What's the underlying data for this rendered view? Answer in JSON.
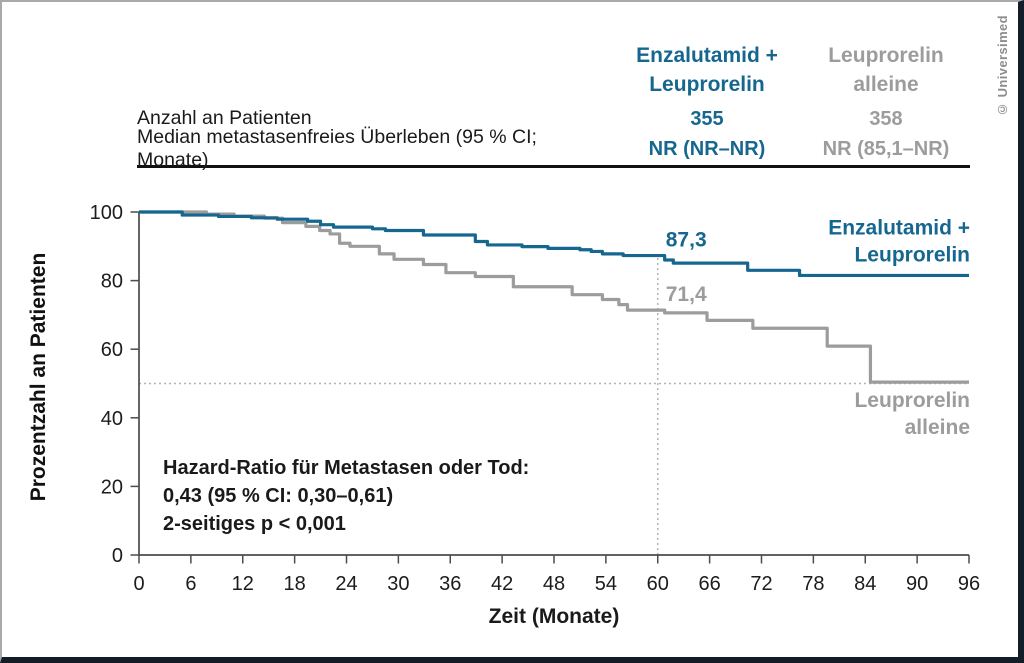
{
  "copyright": "© Universimed",
  "colors": {
    "enzalutamid_blue": "#16678f",
    "leuprorelin_gray": "#9c9c9c",
    "frame_dark": "#121d27",
    "dotted_gray": "#b4b4b4"
  },
  "table": {
    "columns": [
      {
        "header": "Enzalutamid +\nLeuprorelin",
        "color": "#16678f"
      },
      {
        "header": "Leuprorelin alleine",
        "color": "#9c9c9c"
      }
    ],
    "rows": [
      {
        "label": "Anzahl an Patienten",
        "col1": "355",
        "col2": "358"
      },
      {
        "label": "Median metastasenfreies Überleben (95 % CI; Monate)",
        "col1": "NR (NR–NR)",
        "col2": "NR (85,1–NR)"
      }
    ]
  },
  "chart_data": {
    "type": "line",
    "subtype": "kaplan-meier-step",
    "title": "",
    "xlabel": "Zeit (Monate)",
    "ylabel": "Prozentzahl an Patienten",
    "xlim": [
      0,
      96
    ],
    "ylim": [
      0,
      100
    ],
    "x_ticks": [
      0,
      6,
      12,
      18,
      24,
      30,
      36,
      42,
      48,
      54,
      60,
      66,
      72,
      78,
      84,
      90,
      96
    ],
    "y_ticks": [
      0,
      20,
      40,
      60,
      80,
      100
    ],
    "grid": false,
    "reference_lines": {
      "horizontal_y": 50,
      "vertical_x": 60
    },
    "series": [
      {
        "name": "Enzalutamid + Leuprorelin",
        "color": "#16678f",
        "legend_lines": [
          "Enzalutamid +",
          "Leuprorelin"
        ],
        "annotation": {
          "text": "87,3",
          "month": 60,
          "value": 87.3
        },
        "points": [
          [
            0,
            100
          ],
          [
            5,
            99.1
          ],
          [
            9.2,
            98.7
          ],
          [
            13,
            98.3
          ],
          [
            16,
            97.9
          ],
          [
            19.5,
            97.3
          ],
          [
            21,
            96.3
          ],
          [
            22.5,
            95.6
          ],
          [
            27,
            95.1
          ],
          [
            28.5,
            94.6
          ],
          [
            32.9,
            93.3
          ],
          [
            38.9,
            91.4
          ],
          [
            40.3,
            90.4
          ],
          [
            44.3,
            89.9
          ],
          [
            47.3,
            89.4
          ],
          [
            51,
            89
          ],
          [
            52.3,
            88.5
          ],
          [
            53.6,
            87.8
          ],
          [
            56,
            87.3
          ],
          [
            60.8,
            86
          ],
          [
            61.8,
            85.1
          ],
          [
            70.4,
            83
          ],
          [
            76.4,
            81.5
          ],
          [
            96,
            81.5
          ]
        ]
      },
      {
        "name": "Leuprorelin alleine",
        "color": "#9c9c9c",
        "legend_lines": [
          "Leuprorelin",
          "alleine"
        ],
        "annotation": {
          "text": "71,4",
          "month": 60,
          "value": 71.4
        },
        "points": [
          [
            0,
            100
          ],
          [
            7.8,
            99.4
          ],
          [
            11,
            98.8
          ],
          [
            14.5,
            98.2
          ],
          [
            16.6,
            96.9
          ],
          [
            19.3,
            95.8
          ],
          [
            20.9,
            94.6
          ],
          [
            22.1,
            93.6
          ],
          [
            23.2,
            90.9
          ],
          [
            24.4,
            90
          ],
          [
            27.8,
            87.8
          ],
          [
            29.5,
            86.2
          ],
          [
            32.9,
            84.7
          ],
          [
            35.5,
            82.3
          ],
          [
            38.9,
            81.2
          ],
          [
            43.3,
            78.2
          ],
          [
            50.1,
            75.9
          ],
          [
            53.6,
            74.5
          ],
          [
            55.5,
            73
          ],
          [
            56.5,
            71.4
          ],
          [
            60.8,
            70.6
          ],
          [
            65.7,
            68.4
          ],
          [
            71,
            66.1
          ],
          [
            79.6,
            60.9
          ],
          [
            84.6,
            50.4
          ],
          [
            96,
            50.4
          ]
        ]
      }
    ],
    "annotations": {
      "hazard": [
        "Hazard-Ratio für Metastasen oder Tod:",
        "0,43 (95 % CI: 0,30–0,61)",
        "2-seitiges p < 0,001"
      ]
    }
  }
}
